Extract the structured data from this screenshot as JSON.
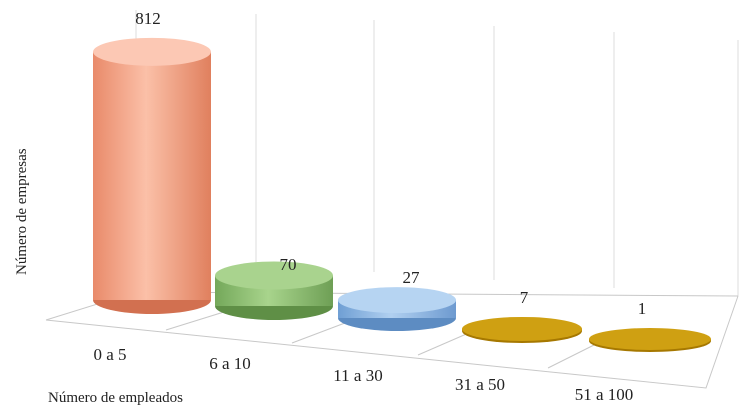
{
  "chart_data": {
    "type": "bar",
    "style": "3d-cylinder",
    "categories": [
      "0 a 5",
      "6 a 10",
      "11 a 30",
      "31 a 50",
      "51 a 100"
    ],
    "values": [
      812,
      70,
      27,
      7,
      1
    ],
    "colors": [
      "#f0a080",
      "#8fbf72",
      "#8db5e2",
      "#c89a0c",
      "#c89a0c"
    ],
    "title": "",
    "xlabel": "Número de empleados",
    "ylabel": "Número de empresas",
    "ylim": [
      0,
      900
    ],
    "grid": true,
    "legend": "none"
  }
}
